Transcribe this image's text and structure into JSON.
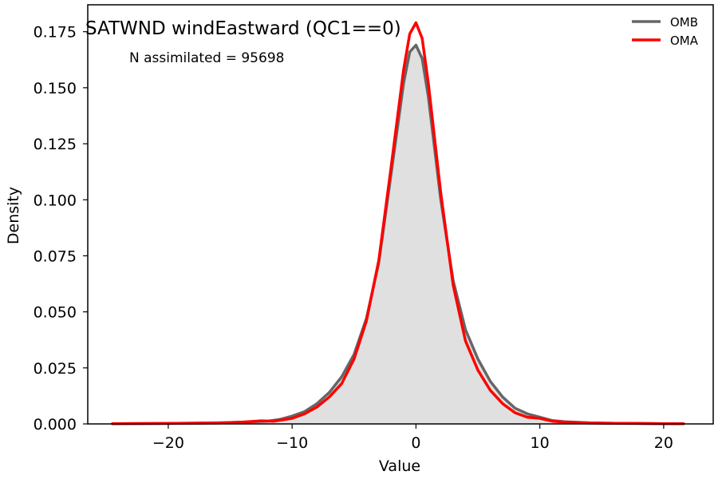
{
  "chart_data": {
    "type": "area",
    "title": "SATWND windEastward (QC1==0)",
    "annotation": "N assimilated = 95698",
    "xlabel": "Value",
    "ylabel": "Density",
    "xlim": [
      -26.5,
      24
    ],
    "ylim": [
      0,
      0.187
    ],
    "x_ticks": [
      -20,
      -10,
      0,
      10,
      20
    ],
    "x_tick_labels": [
      "−20",
      "−10",
      "0",
      "10",
      "20"
    ],
    "y_ticks": [
      0.0,
      0.025,
      0.05,
      0.075,
      0.1,
      0.125,
      0.15,
      0.175
    ],
    "y_tick_labels": [
      "0.000",
      "0.025",
      "0.050",
      "0.075",
      "0.100",
      "0.125",
      "0.150",
      "0.175"
    ],
    "grid": false,
    "legend_position": "top-right",
    "series": [
      {
        "name": "OMB",
        "color": "#666666",
        "fill": "#e0e0e0",
        "x": [
          -24.5,
          -20,
          -16,
          -14,
          -12,
          -11,
          -10,
          -9,
          -8,
          -7,
          -6,
          -5,
          -4,
          -3,
          -2,
          -1,
          -0.5,
          0,
          0.5,
          1,
          2,
          3,
          4,
          5,
          6,
          7,
          8,
          9,
          10,
          11,
          12,
          14,
          16,
          18,
          20,
          21.6
        ],
        "y": [
          0.0001,
          0.0002,
          0.0005,
          0.0008,
          0.0012,
          0.002,
          0.0035,
          0.0055,
          0.009,
          0.014,
          0.021,
          0.031,
          0.047,
          0.072,
          0.112,
          0.152,
          0.166,
          0.169,
          0.163,
          0.146,
          0.1,
          0.064,
          0.042,
          0.029,
          0.019,
          0.012,
          0.007,
          0.0045,
          0.003,
          0.0015,
          0.001,
          0.0005,
          0.0003,
          0.0002,
          0.0001,
          0.0001
        ]
      },
      {
        "name": "OMA",
        "color": "#ff0000",
        "x": [
          -24.5,
          -20,
          -16,
          -14,
          -12.5,
          -11.5,
          -10,
          -9,
          -8,
          -7,
          -6,
          -5,
          -4,
          -3,
          -2,
          -1,
          -0.5,
          0,
          0.5,
          1,
          2,
          3,
          4,
          5,
          6,
          7,
          8,
          9,
          10,
          11,
          12,
          14,
          16,
          18,
          20,
          21.6
        ],
        "y": [
          0.0001,
          0.0002,
          0.0004,
          0.0008,
          0.0014,
          0.0012,
          0.0025,
          0.0045,
          0.0075,
          0.012,
          0.018,
          0.029,
          0.046,
          0.073,
          0.115,
          0.158,
          0.174,
          0.179,
          0.172,
          0.152,
          0.103,
          0.062,
          0.037,
          0.024,
          0.015,
          0.009,
          0.005,
          0.003,
          0.0025,
          0.0012,
          0.0008,
          0.0004,
          0.0003,
          0.0002,
          0.0001,
          0.0001
        ]
      }
    ]
  }
}
